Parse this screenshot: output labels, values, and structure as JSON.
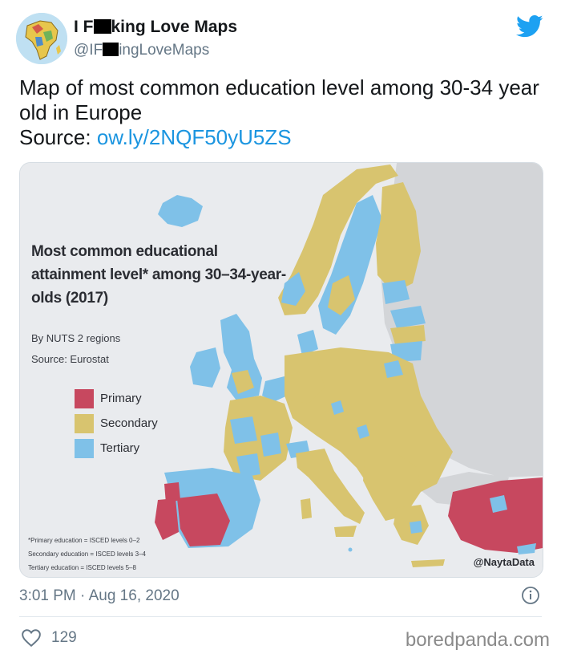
{
  "account": {
    "display_name_start": "I F",
    "display_name_end": "king Love Maps",
    "handle_start": "@IF",
    "handle_end": "ingLoveMaps"
  },
  "tweet": {
    "text_line": "Map of most common education level among 30-34 year old in Europe",
    "source_label": "Source: ",
    "source_link": "ow.ly/2NQF50yU5ZS"
  },
  "map": {
    "title": "Most common educational attainment level* among 30–34-year-olds (2017)",
    "subtitle_1": "By NUTS 2 regions",
    "subtitle_2": "Source: Eurostat",
    "legend": [
      {
        "label": "Primary",
        "color": "#c7485f"
      },
      {
        "label": "Secondary",
        "color": "#d8c46f"
      },
      {
        "label": "Tertiary",
        "color": "#7fc1e8"
      }
    ],
    "footnotes": [
      "*Primary education = ISCED levels 0–2",
      "Secondary education = ISCED levels 3–4",
      "Tertiary education = ISCED levels 5–8"
    ],
    "credit": "@NaytaData",
    "colors": {
      "primary": "#c7485f",
      "secondary": "#d8c46f",
      "tertiary": "#7fc1e8",
      "non_eu": "#d3d5d8",
      "water": "#e9ebee"
    }
  },
  "meta": {
    "timestamp": "3:01 PM · Aug 16, 2020",
    "likes": "129",
    "watermark": "boredpanda.com"
  },
  "icons": [
    "twitter-bird-icon",
    "info-icon",
    "heart-icon",
    "africa-avatar"
  ]
}
